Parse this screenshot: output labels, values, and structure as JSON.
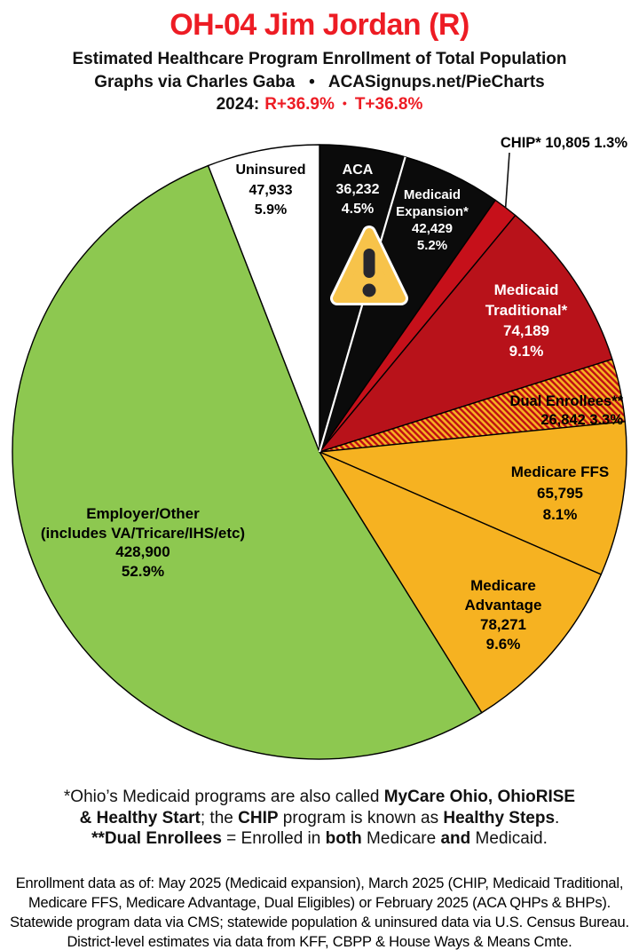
{
  "header": {
    "title": "OH-04 Jim Jordan (R)",
    "subtitle1": "Estimated Healthcare Program Enrollment of Total Population",
    "subtitle2": "Graphs via Charles Gaba   •   ACASignups.net/PieCharts",
    "year_label": "2024:",
    "r_value": "R+36.9%",
    "bullet": "•",
    "t_value": "T+36.8%"
  },
  "colors": {
    "accent_red": "#ed1c24",
    "pie_black": "#0b0b0b",
    "pie_red_chip": "#c6101a",
    "pie_red_medicaid": "#b8121a",
    "pie_gold": "#f6b221",
    "pie_green": "#8dc850",
    "pie_white": "#ffffff",
    "warning_fill": "#f7c34a"
  },
  "icons": {
    "warning_icon": "rounded amber triangle with dark exclamation mark"
  },
  "chart_data": {
    "type": "pie",
    "title": "OH-04 Jim Jordan (R) — Estimated Healthcare Program Enrollment of Total Population",
    "start": "12 o'clock, clockwise",
    "legend": "none (direct slice labels)",
    "hatch_colors": {
      "base": "#f6b221",
      "stripe": "#c00d14"
    },
    "divider": {
      "after": "aca",
      "color": "#ffffff"
    },
    "segments": [
      {
        "id": "aca",
        "name": "ACA",
        "value": 36232,
        "value_label": "36,232",
        "pct_label": "4.5%",
        "percent": 4.5,
        "color": "#0b0b0b",
        "label_color": "#ffffff"
      },
      {
        "id": "medicaid-expansion",
        "name": "Medicaid Expansion*",
        "value": 42429,
        "value_label": "42,429",
        "pct_label": "5.2%",
        "percent": 5.2,
        "color": "#0b0b0b",
        "label_color": "#ffffff"
      },
      {
        "id": "chip",
        "name": "CHIP*",
        "value": 10805,
        "value_label": "10,805",
        "pct_label": "1.3%",
        "percent": 1.3,
        "color": "#c6101a",
        "label_color": "#000000"
      },
      {
        "id": "medicaid-traditional",
        "name": "Medicaid Traditional*",
        "value": 74189,
        "value_label": "74,189",
        "pct_label": "9.1%",
        "percent": 9.1,
        "color": "#b8121a",
        "label_color": "#ffffff"
      },
      {
        "id": "dual-enrollees",
        "name": "Dual Enrollees**",
        "value": 26842,
        "value_label": "26,842",
        "pct_label": "3.3%",
        "percent": 3.3,
        "color": "pattern:dual-hatch",
        "label_color": "#000000"
      },
      {
        "id": "medicare-ffs",
        "name": "Medicare FFS",
        "value": 65795,
        "value_label": "65,795",
        "pct_label": "8.1%",
        "percent": 8.1,
        "color": "#f6b221",
        "label_color": "#000000"
      },
      {
        "id": "medicare-advantage",
        "name": "Medicare Advantage",
        "value": 78271,
        "value_label": "78,271",
        "pct_label": "9.6%",
        "percent": 9.6,
        "color": "#f6b221",
        "label_color": "#000000"
      },
      {
        "id": "employer-other",
        "name": "Employer/Other",
        "sub_name": "(includes VA/Tricare/IHS/etc)",
        "value": 428900,
        "value_label": "428,900",
        "pct_label": "52.9%",
        "percent": 52.9,
        "color": "#8dc850",
        "label_color": "#000000"
      },
      {
        "id": "uninsured",
        "name": "Uninsured",
        "value": 47933,
        "value_label": "47,933",
        "pct_label": "5.9%",
        "percent": 5.9,
        "color": "#ffffff",
        "label_color": "#000000"
      }
    ]
  },
  "footnote1": {
    "lines": [
      {
        "parts": [
          {
            "t": "*Ohio’s Medicaid programs are also called ",
            "b": 0
          },
          {
            "t": "MyCare Ohio, OhioRISE",
            "b": 1
          }
        ]
      },
      {
        "parts": [
          {
            "t": "& Healthy Start",
            "b": 1
          },
          {
            "t": "; the ",
            "b": 0
          },
          {
            "t": "CHIP",
            "b": 1
          },
          {
            "t": " program is known as ",
            "b": 0
          },
          {
            "t": "Healthy Steps",
            "b": 1
          },
          {
            "t": ".",
            "b": 0
          }
        ]
      },
      {
        "parts": [
          {
            "t": "**Dual Enrollees",
            "b": 1
          },
          {
            "t": " = Enrolled in ",
            "b": 0
          },
          {
            "t": "both",
            "b": 1
          },
          {
            "t": " Medicare ",
            "b": 0
          },
          {
            "t": "and",
            "b": 1
          },
          {
            "t": " Medicaid.",
            "b": 0
          }
        ]
      }
    ]
  },
  "footnote2": {
    "lines": [
      "Enrollment data as of: May 2025 (Medicaid expansion), March 2025 (CHIP, Medicaid Traditional,",
      "Medicare FFS, Medicare Advantage, Dual Eligibles) or February 2025 (ACA QHPs & BHPs).",
      "Statewide program data via CMS; statewide population & uninsured data via U.S. Census Bureau.",
      "District-level estimates via data from KFF, CBPP & House Ways & Means Cmte."
    ]
  }
}
